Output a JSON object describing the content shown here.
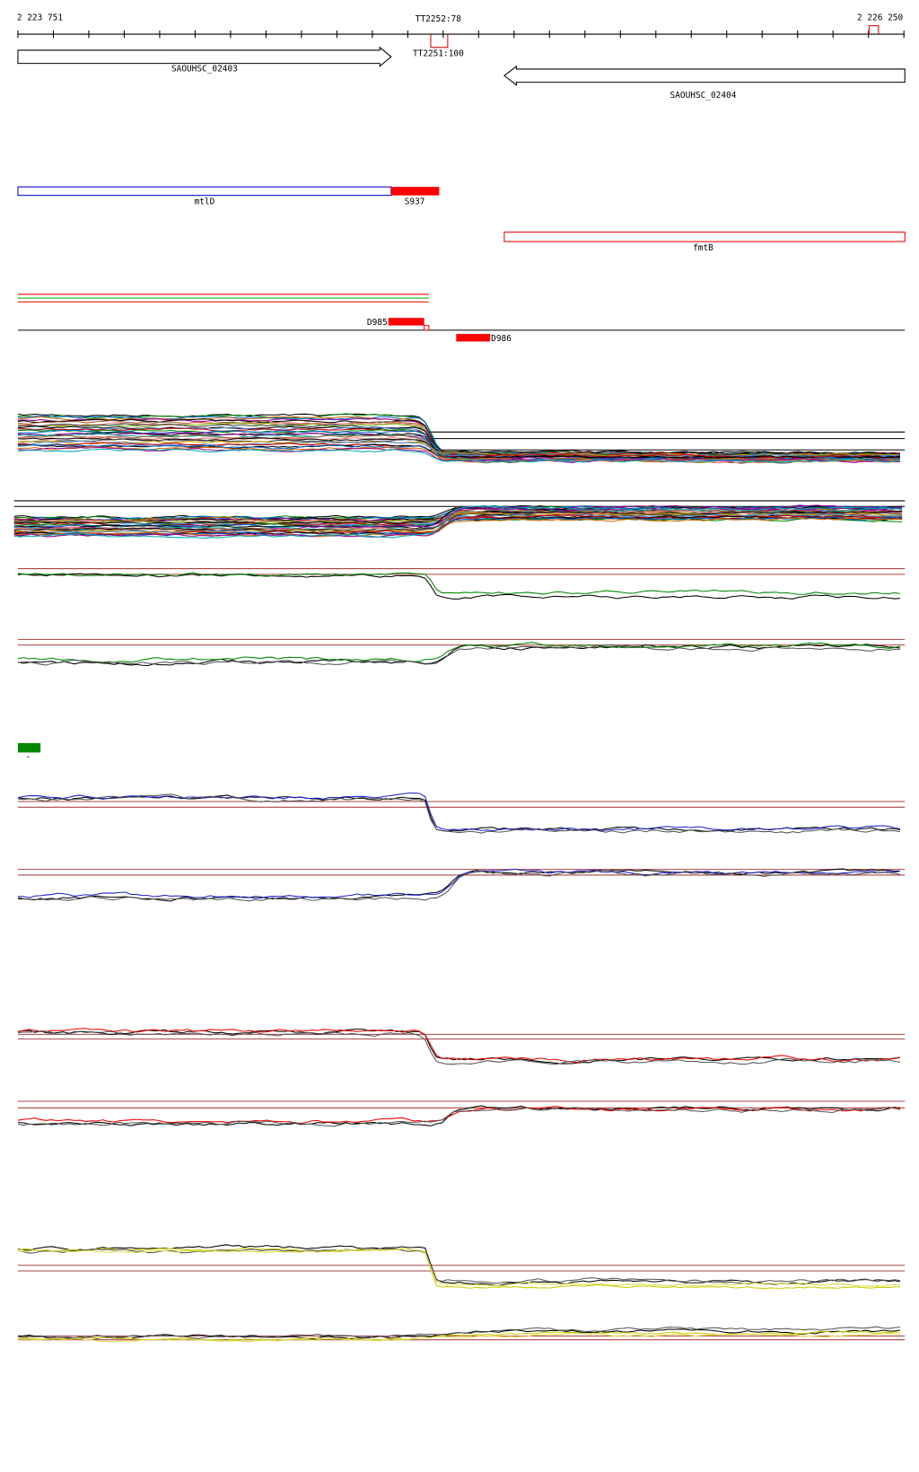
{
  "ruler": {
    "start": "2 223 751",
    "end": "2 226 250",
    "markers": [
      "TT2252:78",
      "TT2251:100"
    ]
  },
  "genes": [
    {
      "label": "SAOUHSC_02403"
    },
    {
      "label": "SAOUHSC_02404"
    }
  ],
  "features": [
    {
      "label": "mtlD"
    },
    {
      "label": "S937"
    },
    {
      "label": "fmtB"
    }
  ],
  "regions": [
    {
      "label": "D985"
    },
    {
      "label": "D986"
    }
  ],
  "legend": {
    "label": "-"
  }
}
